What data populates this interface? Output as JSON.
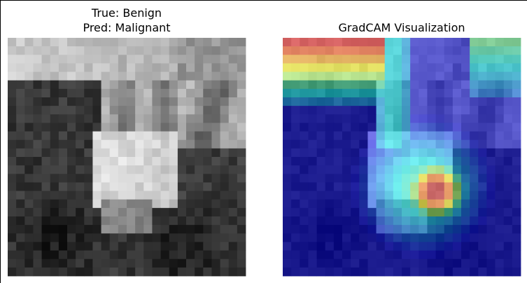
{
  "panels": [
    {
      "title_lines": [
        "True: Benign",
        "Pred: Malignant"
      ]
    },
    {
      "title_lines": [
        "GradCAM Visualization"
      ]
    }
  ]
}
